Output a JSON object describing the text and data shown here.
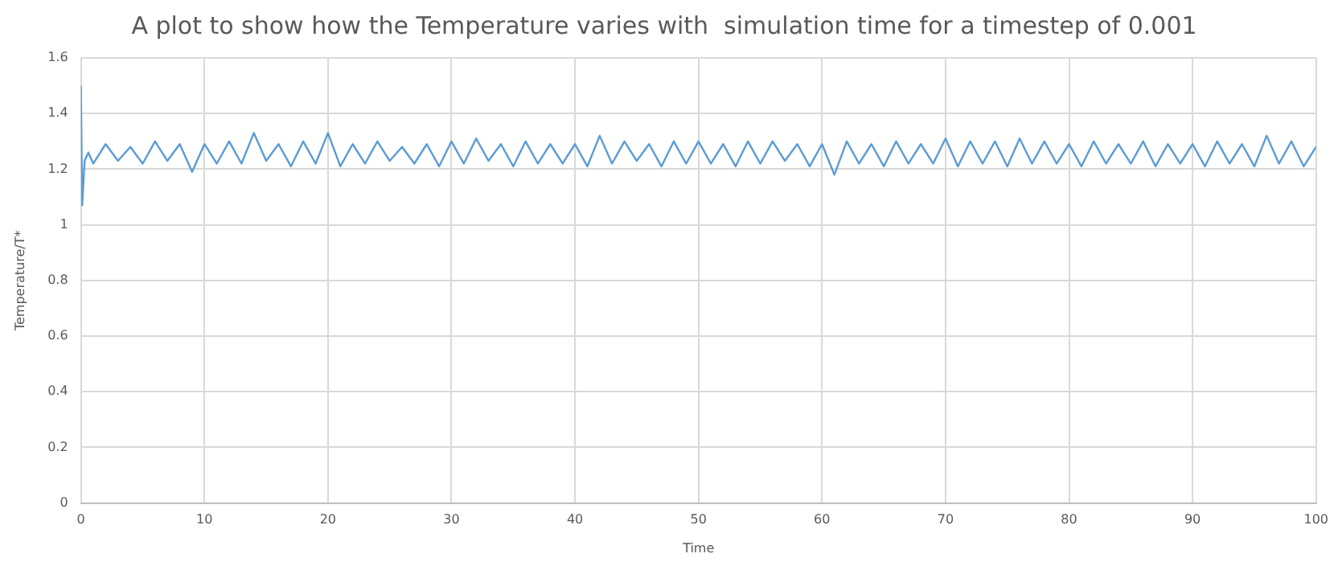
{
  "chart_data": {
    "type": "line",
    "title": "A plot to show how the Temperature varies with  simulation time for a timestep of 0.001",
    "xlabel": "Time",
    "ylabel": "Temperature/T*",
    "x": [
      0,
      0.1,
      0.3,
      0.6,
      1,
      2,
      3,
      4,
      5,
      6,
      7,
      8,
      9,
      10,
      11,
      12,
      13,
      14,
      15,
      16,
      17,
      18,
      19,
      20,
      21,
      22,
      23,
      24,
      25,
      26,
      27,
      28,
      29,
      30,
      31,
      32,
      33,
      34,
      35,
      36,
      37,
      38,
      39,
      40,
      41,
      42,
      43,
      44,
      45,
      46,
      47,
      48,
      49,
      50,
      51,
      52,
      53,
      54,
      55,
      56,
      57,
      58,
      59,
      60,
      61,
      62,
      63,
      64,
      65,
      66,
      67,
      68,
      69,
      70,
      71,
      72,
      73,
      74,
      75,
      76,
      77,
      78,
      79,
      80,
      81,
      82,
      83,
      84,
      85,
      86,
      87,
      88,
      89,
      90,
      91,
      92,
      93,
      94,
      95,
      96,
      97,
      98,
      99,
      100
    ],
    "values": [
      1.5,
      1.07,
      1.23,
      1.26,
      1.22,
      1.29,
      1.23,
      1.28,
      1.22,
      1.3,
      1.23,
      1.29,
      1.19,
      1.29,
      1.22,
      1.3,
      1.22,
      1.33,
      1.23,
      1.29,
      1.21,
      1.3,
      1.22,
      1.33,
      1.21,
      1.29,
      1.22,
      1.3,
      1.23,
      1.28,
      1.22,
      1.29,
      1.21,
      1.3,
      1.22,
      1.31,
      1.23,
      1.29,
      1.21,
      1.3,
      1.22,
      1.29,
      1.22,
      1.29,
      1.21,
      1.32,
      1.22,
      1.3,
      1.23,
      1.29,
      1.21,
      1.3,
      1.22,
      1.3,
      1.22,
      1.29,
      1.21,
      1.3,
      1.22,
      1.3,
      1.23,
      1.29,
      1.21,
      1.29,
      1.18,
      1.3,
      1.22,
      1.29,
      1.21,
      1.3,
      1.22,
      1.29,
      1.22,
      1.31,
      1.21,
      1.3,
      1.22,
      1.3,
      1.21,
      1.31,
      1.22,
      1.3,
      1.22,
      1.29,
      1.21,
      1.3,
      1.22,
      1.29,
      1.22,
      1.3,
      1.21,
      1.29,
      1.22,
      1.29,
      1.21,
      1.3,
      1.22,
      1.29,
      1.21,
      1.32,
      1.22,
      1.3,
      1.21,
      1.28
    ],
    "color": "#5b9bd5",
    "xlim": [
      0,
      100
    ],
    "xticks": [
      0,
      10,
      20,
      30,
      40,
      50,
      60,
      70,
      80,
      90,
      100
    ],
    "ylim": [
      0,
      1.6
    ],
    "yticks": [
      0,
      0.2,
      0.4,
      0.6,
      0.8,
      1,
      1.2,
      1.4,
      1.6
    ],
    "grid": true,
    "legend": false,
    "marker": "none",
    "line_style": "solid"
  }
}
